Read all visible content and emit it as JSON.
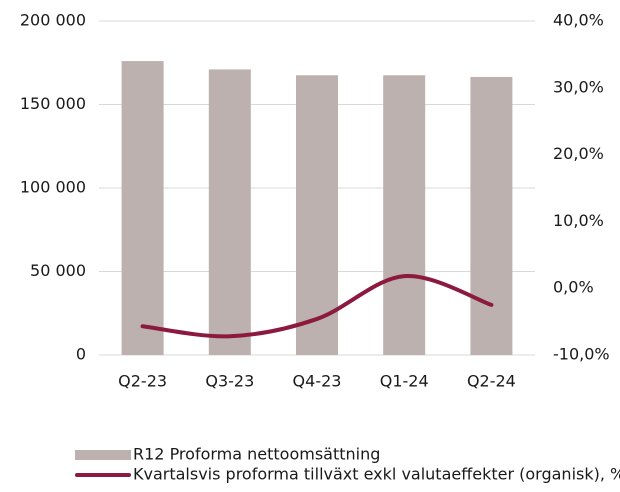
{
  "chart_data": {
    "type": "bar_line",
    "categories": [
      "Q2-23",
      "Q3-23",
      "Q4-23",
      "Q1-24",
      "Q2-24"
    ],
    "series": [
      {
        "name": "R12 Proforma nettoomsättning",
        "type": "bar",
        "color": "#bcb1af",
        "values": [
          176000,
          171000,
          167500,
          167500,
          166500
        ]
      },
      {
        "name": "Kvartalsvis proforma tillväxt exkl valutaeffekter (organisk), %",
        "type": "line",
        "axis": "y2",
        "color": "#8b1a3e",
        "values": [
          -5.7,
          -7.2,
          -4.6,
          1.8,
          -2.5
        ]
      }
    ],
    "ylim": [
      0,
      200000
    ],
    "yticks": [
      0,
      {
        "value": 50000,
        "label": "50 000"
      },
      {
        "value": 100000,
        "label": "100 000"
      },
      {
        "value": 150000,
        "label": "150 000"
      },
      {
        "value": 200000,
        "label": "200 000"
      }
    ],
    "y2lim": [
      -10,
      40
    ],
    "y2ticks": [
      {
        "value": -10,
        "label": "-10,0%"
      },
      {
        "value": 0,
        "label": "0,0%"
      },
      {
        "value": 10,
        "label": "10,0%"
      },
      {
        "value": 20,
        "label": "20,0%"
      },
      {
        "value": 30,
        "label": "30,0%"
      },
      {
        "value": 40,
        "label": "40,0%"
      }
    ],
    "grid": true
  }
}
